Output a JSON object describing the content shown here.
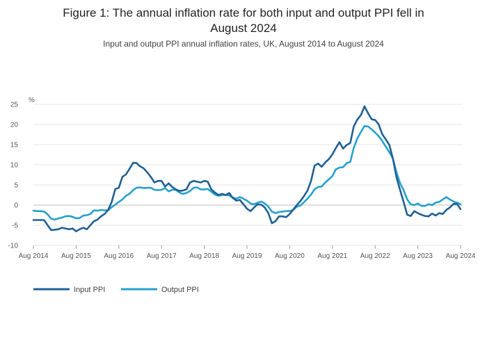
{
  "chart_data": {
    "type": "line",
    "title": "Figure 1: The annual inflation rate for both input and output PPI fell in August 2024",
    "title_line1": "Figure 1: The annual inflation rate for both input and output PPI fell in",
    "title_line2": "August 2024",
    "subtitle": "Input and output PPI annual inflation rates, UK, August 2014 to August 2024",
    "ylabel": "%",
    "ylim": [
      -10,
      25
    ],
    "yticks": [
      -10,
      -5,
      0,
      5,
      10,
      15,
      20,
      25
    ],
    "xticks": [
      "Aug 2014",
      "Aug 2015",
      "Aug 2016",
      "Aug 2017",
      "Aug 2018",
      "Aug 2019",
      "Aug 2020",
      "Aug 2021",
      "Aug 2022",
      "Aug 2023",
      "Aug 2024"
    ],
    "x_start": "Aug 2014",
    "x_end": "Aug 2024",
    "grid": true,
    "legend_position": "bottom-left",
    "series": [
      {
        "name": "Input PPI",
        "color": "#206095",
        "values": [
          -3.7,
          -3.7,
          -3.7,
          -3.7,
          -5.0,
          -6.2,
          -6.1,
          -6.0,
          -5.6,
          -5.8,
          -6.0,
          -5.8,
          -6.5,
          -6.0,
          -5.6,
          -6.0,
          -5.0,
          -4.0,
          -3.6,
          -2.8,
          -2.2,
          -1.2,
          0.8,
          4.0,
          4.3,
          7.0,
          7.6,
          9.0,
          10.5,
          10.4,
          9.6,
          9.1,
          8.1,
          7.0,
          5.6,
          6.0,
          6.0,
          4.6,
          5.4,
          4.5,
          3.9,
          3.5,
          3.6,
          3.9,
          5.6,
          6.0,
          5.8,
          5.6,
          6.0,
          5.8,
          3.9,
          3.1,
          2.5,
          2.8,
          2.5,
          3.0,
          1.8,
          1.1,
          1.3,
          0.2,
          -0.9,
          -1.5,
          -0.6,
          0.2,
          0.1,
          -0.6,
          -2.0,
          -4.5,
          -4.0,
          -2.8,
          -2.8,
          -3.0,
          -2.2,
          -1.1,
          0.0,
          1.0,
          2.2,
          3.6,
          6.0,
          9.8,
          10.3,
          9.5,
          10.6,
          11.4,
          12.6,
          14.2,
          15.6,
          14.0,
          14.9,
          15.4,
          19.5,
          21.2,
          22.3,
          24.5,
          22.8,
          21.3,
          21.1,
          20.0,
          17.6,
          16.3,
          14.9,
          11.5,
          6.9,
          3.8,
          0.8,
          -2.4,
          -2.7,
          -1.5,
          -2.0,
          -2.4,
          -2.7,
          -2.8,
          -2.1,
          -2.6,
          -2.0,
          -2.2,
          -1.2,
          -0.6,
          0.3,
          0.3,
          -1.0
        ]
      },
      {
        "name": "Output PPI",
        "color": "#27a0cc",
        "values": [
          -1.4,
          -1.5,
          -1.5,
          -1.6,
          -2.3,
          -3.4,
          -3.6,
          -3.3,
          -3.1,
          -2.8,
          -2.7,
          -2.9,
          -3.3,
          -3.2,
          -2.6,
          -2.5,
          -2.2,
          -1.3,
          -1.4,
          -1.2,
          -1.3,
          -1.3,
          -0.5,
          0.1,
          0.8,
          1.4,
          2.3,
          2.8,
          3.7,
          4.3,
          4.4,
          4.2,
          4.3,
          4.3,
          3.8,
          3.7,
          3.8,
          4.2,
          3.4,
          3.8,
          3.8,
          3.1,
          2.8,
          3.0,
          3.5,
          4.3,
          4.4,
          3.9,
          3.9,
          4.0,
          3.3,
          2.6,
          2.3,
          2.5,
          2.5,
          2.4,
          1.9,
          1.6,
          2.0,
          1.6,
          1.1,
          0.4,
          0.2,
          0.6,
          0.9,
          0.4,
          -0.4,
          -1.6,
          -2.0,
          -1.7,
          -1.6,
          -1.5,
          -1.5,
          -1.2,
          -0.4,
          -0.1,
          0.7,
          1.6,
          2.6,
          3.9,
          4.5,
          4.6,
          5.6,
          6.4,
          7.2,
          8.9,
          9.3,
          9.4,
          10.4,
          10.7,
          14.2,
          16.5,
          18.1,
          19.6,
          19.5,
          18.8,
          18.0,
          17.1,
          15.9,
          14.5,
          13.1,
          11.5,
          8.1,
          5.5,
          3.7,
          1.4,
          0.2,
          0.0,
          0.4,
          -0.2,
          -0.2,
          0.2,
          0.0,
          0.6,
          0.8,
          1.4,
          2.0,
          1.4,
          0.9,
          0.6,
          0.2
        ]
      }
    ]
  }
}
